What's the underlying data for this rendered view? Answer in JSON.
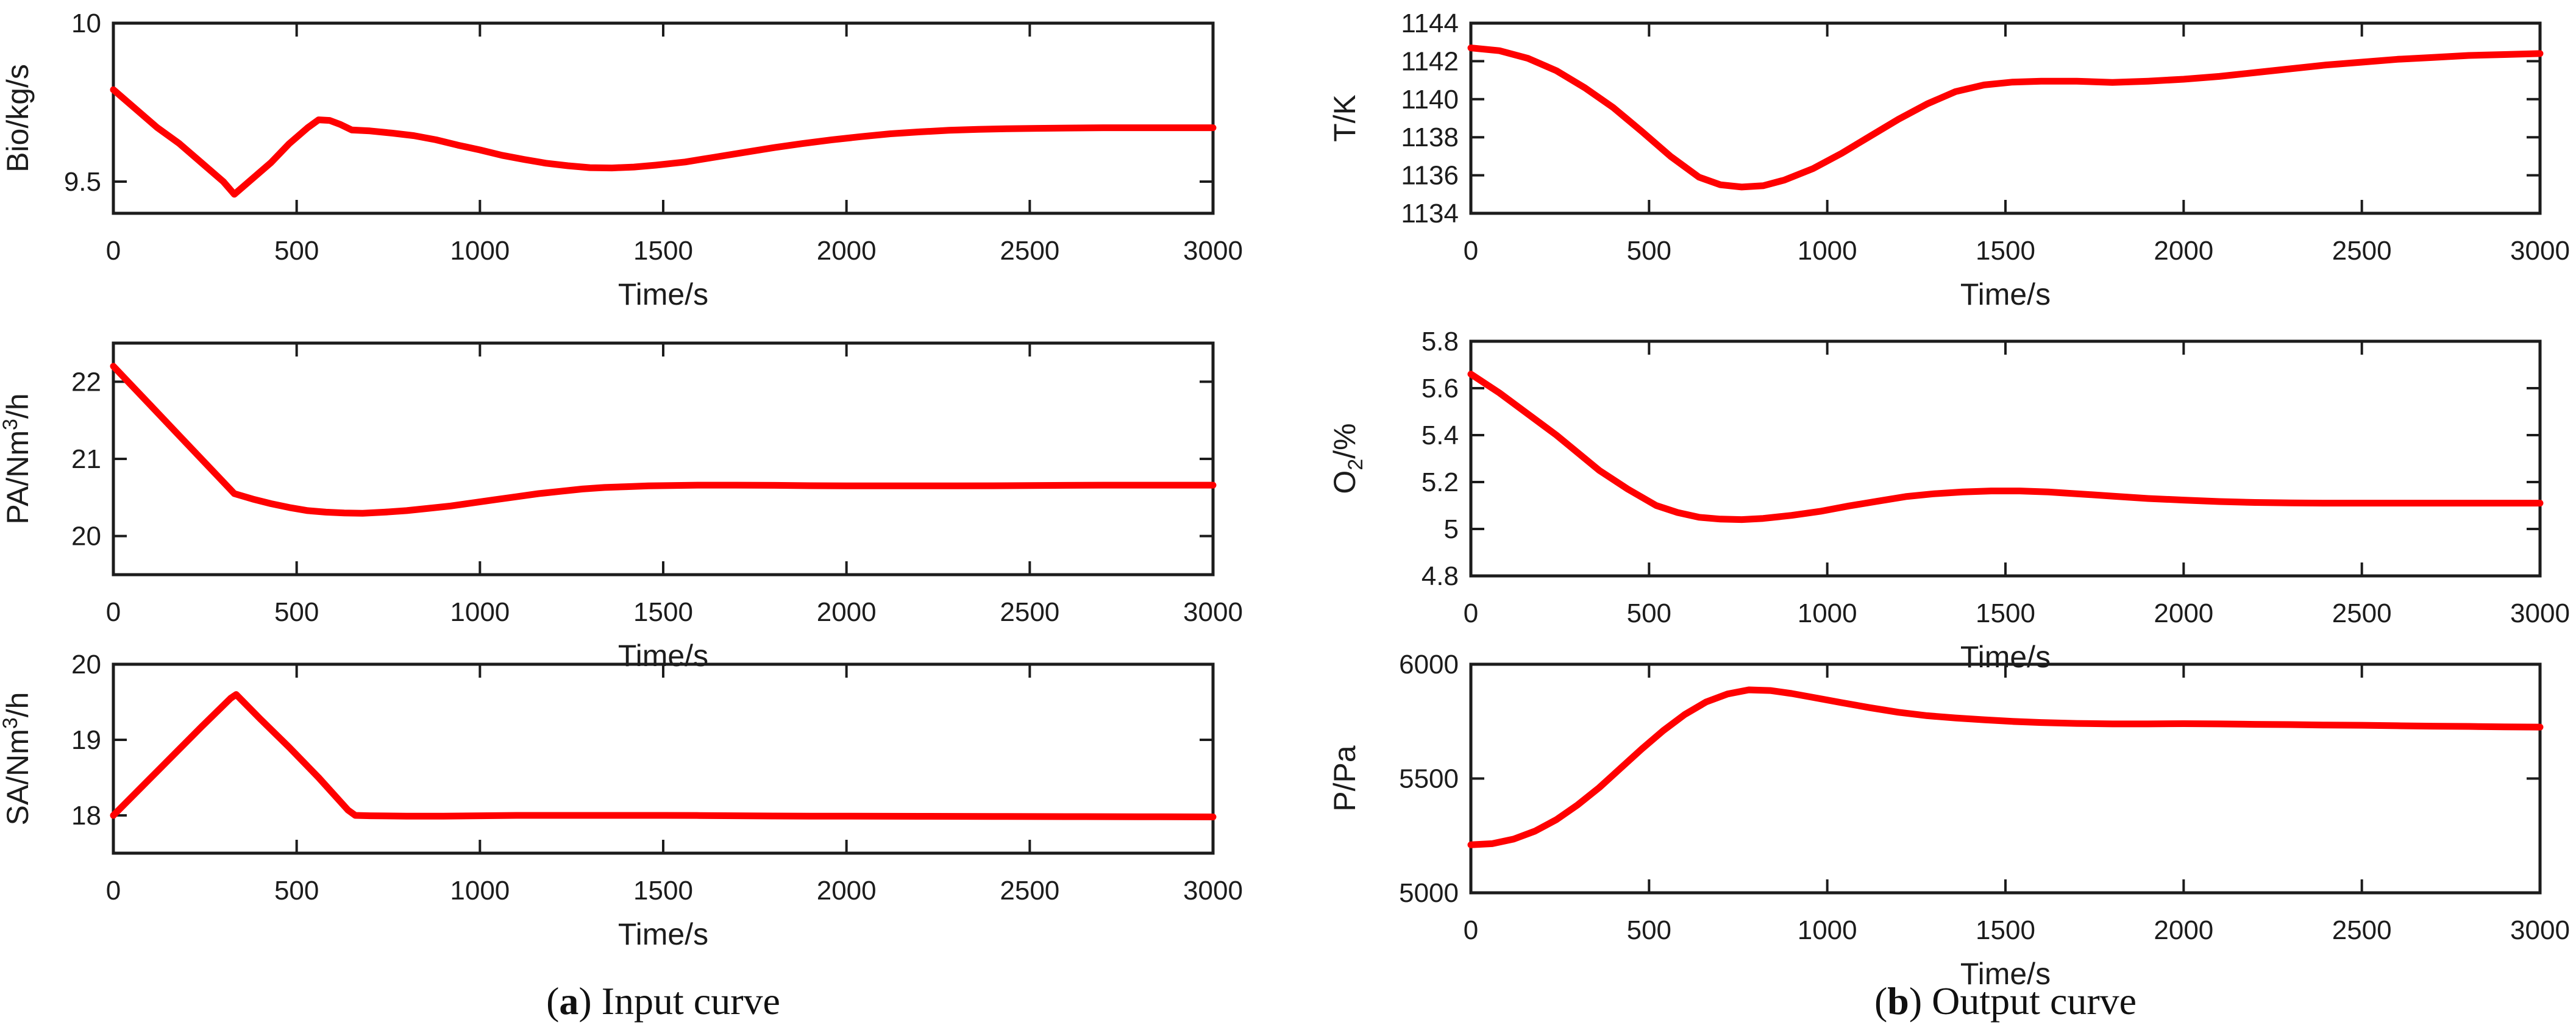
{
  "figure": {
    "caption_a": {
      "pre": "(",
      "letter": "a",
      "post": ") Input curve"
    },
    "caption_b": {
      "pre": "(",
      "letter": "b",
      "post": ") Output curve"
    }
  },
  "style": {
    "line_color": "#ff0000",
    "axis_color": "#1c1c1c",
    "text_color": "#1c1c1c"
  },
  "chart_data": [
    {
      "id": "bio",
      "type": "line",
      "name": "biomass-feed-input",
      "ylabel": "Bio/kg/s",
      "ylabel_parts": [
        {
          "text": "Bio/kg/s"
        }
      ],
      "xlabel": "Time/s",
      "xlim": [
        0,
        3000
      ],
      "ylim": [
        9.4,
        10
      ],
      "xticks": [
        0,
        500,
        1000,
        1500,
        2000,
        2500,
        3000
      ],
      "xtick_labels": [
        "0",
        "500",
        "1000",
        "1500",
        "2000",
        "2500",
        "3000"
      ],
      "yticks": [
        9.5,
        10
      ],
      "ytick_labels": [
        "9.5",
        "10"
      ],
      "grid": false,
      "legend": null,
      "points": [
        [
          0,
          9.79
        ],
        [
          60,
          9.73
        ],
        [
          120,
          9.67
        ],
        [
          180,
          9.62
        ],
        [
          240,
          9.56
        ],
        [
          300,
          9.5
        ],
        [
          330,
          9.46
        ],
        [
          380,
          9.51
        ],
        [
          430,
          9.56
        ],
        [
          480,
          9.62
        ],
        [
          530,
          9.67
        ],
        [
          560,
          9.695
        ],
        [
          590,
          9.693
        ],
        [
          620,
          9.68
        ],
        [
          650,
          9.663
        ],
        [
          700,
          9.66
        ],
        [
          760,
          9.653
        ],
        [
          820,
          9.645
        ],
        [
          880,
          9.632
        ],
        [
          940,
          9.615
        ],
        [
          1000,
          9.6
        ],
        [
          1060,
          9.583
        ],
        [
          1120,
          9.57
        ],
        [
          1180,
          9.558
        ],
        [
          1240,
          9.55
        ],
        [
          1300,
          9.544
        ],
        [
          1360,
          9.543
        ],
        [
          1420,
          9.546
        ],
        [
          1480,
          9.552
        ],
        [
          1560,
          9.562
        ],
        [
          1640,
          9.577
        ],
        [
          1720,
          9.592
        ],
        [
          1800,
          9.607
        ],
        [
          1880,
          9.62
        ],
        [
          1960,
          9.632
        ],
        [
          2040,
          9.642
        ],
        [
          2120,
          9.651
        ],
        [
          2200,
          9.657
        ],
        [
          2280,
          9.662
        ],
        [
          2360,
          9.665
        ],
        [
          2440,
          9.667
        ],
        [
          2520,
          9.668
        ],
        [
          2600,
          9.669
        ],
        [
          2700,
          9.67
        ],
        [
          2800,
          9.67
        ],
        [
          2900,
          9.67
        ],
        [
          3000,
          9.67
        ]
      ]
    },
    {
      "id": "pa",
      "type": "line",
      "name": "primary-air-input",
      "ylabel": "PA/Nm3/h",
      "ylabel_parts": [
        {
          "text": "PA/Nm"
        },
        {
          "text": "3",
          "style": "sup"
        },
        {
          "text": "/h"
        }
      ],
      "xlabel": "Time/s",
      "xlim": [
        0,
        3000
      ],
      "ylim": [
        19.5,
        22.5
      ],
      "xticks": [
        0,
        500,
        1000,
        1500,
        2000,
        2500,
        3000
      ],
      "xtick_labels": [
        "0",
        "500",
        "1000",
        "1500",
        "2000",
        "2500",
        "3000"
      ],
      "yticks": [
        20,
        21,
        22
      ],
      "ytick_labels": [
        "20",
        "21",
        "22"
      ],
      "grid": false,
      "legend": null,
      "points": [
        [
          0,
          22.2
        ],
        [
          60,
          21.9
        ],
        [
          120,
          21.6
        ],
        [
          180,
          21.3
        ],
        [
          240,
          21.0
        ],
        [
          300,
          20.7
        ],
        [
          330,
          20.55
        ],
        [
          380,
          20.48
        ],
        [
          430,
          20.42
        ],
        [
          480,
          20.37
        ],
        [
          530,
          20.33
        ],
        [
          580,
          20.31
        ],
        [
          630,
          20.3
        ],
        [
          680,
          20.295
        ],
        [
          740,
          20.31
        ],
        [
          800,
          20.33
        ],
        [
          860,
          20.36
        ],
        [
          920,
          20.39
        ],
        [
          980,
          20.43
        ],
        [
          1040,
          20.47
        ],
        [
          1100,
          20.51
        ],
        [
          1160,
          20.55
        ],
        [
          1220,
          20.58
        ],
        [
          1280,
          20.61
        ],
        [
          1340,
          20.63
        ],
        [
          1400,
          20.64
        ],
        [
          1460,
          20.65
        ],
        [
          1520,
          20.655
        ],
        [
          1600,
          20.66
        ],
        [
          1700,
          20.66
        ],
        [
          1800,
          20.657
        ],
        [
          1900,
          20.653
        ],
        [
          2000,
          20.65
        ],
        [
          2100,
          20.65
        ],
        [
          2200,
          20.65
        ],
        [
          2300,
          20.65
        ],
        [
          2400,
          20.652
        ],
        [
          2500,
          20.655
        ],
        [
          2600,
          20.657
        ],
        [
          2700,
          20.66
        ],
        [
          2800,
          20.66
        ],
        [
          2900,
          20.66
        ],
        [
          3000,
          20.66
        ]
      ]
    },
    {
      "id": "sa",
      "type": "line",
      "name": "secondary-air-input",
      "ylabel": "SA/Nm3/h",
      "ylabel_parts": [
        {
          "text": "SA/Nm"
        },
        {
          "text": "3",
          "style": "sup"
        },
        {
          "text": "/h"
        }
      ],
      "xlabel": "Time/s",
      "xlim": [
        0,
        3000
      ],
      "ylim": [
        17.5,
        20
      ],
      "xticks": [
        0,
        500,
        1000,
        1500,
        2000,
        2500,
        3000
      ],
      "xtick_labels": [
        "0",
        "500",
        "1000",
        "1500",
        "2000",
        "2500",
        "3000"
      ],
      "yticks": [
        18,
        19,
        20
      ],
      "ytick_labels": [
        "18",
        "19",
        "20"
      ],
      "grid": false,
      "legend": null,
      "points": [
        [
          0,
          18.0
        ],
        [
          80,
          18.39
        ],
        [
          160,
          18.78
        ],
        [
          240,
          19.17
        ],
        [
          320,
          19.55
        ],
        [
          335,
          19.6
        ],
        [
          400,
          19.28
        ],
        [
          480,
          18.9
        ],
        [
          560,
          18.5
        ],
        [
          640,
          18.07
        ],
        [
          660,
          18.0
        ],
        [
          700,
          17.995
        ],
        [
          800,
          17.99
        ],
        [
          900,
          17.99
        ],
        [
          1000,
          17.995
        ],
        [
          1100,
          18.0
        ],
        [
          1200,
          18.0
        ],
        [
          1300,
          18.0
        ],
        [
          1400,
          18.0
        ],
        [
          1500,
          18.0
        ],
        [
          1600,
          17.998
        ],
        [
          1700,
          17.995
        ],
        [
          1800,
          17.992
        ],
        [
          1900,
          17.99
        ],
        [
          2000,
          17.99
        ],
        [
          2200,
          17.988
        ],
        [
          2400,
          17.986
        ],
        [
          2600,
          17.984
        ],
        [
          2800,
          17.982
        ],
        [
          3000,
          17.98
        ]
      ]
    },
    {
      "id": "t",
      "type": "line",
      "name": "temperature-output",
      "ylabel": "T/K",
      "ylabel_parts": [
        {
          "text": "T/K"
        }
      ],
      "xlabel": "Time/s",
      "xlim": [
        0,
        3000
      ],
      "ylim": [
        1134,
        1144
      ],
      "xticks": [
        0,
        500,
        1000,
        1500,
        2000,
        2500,
        3000
      ],
      "xtick_labels": [
        "0",
        "500",
        "1000",
        "1500",
        "2000",
        "2500",
        "3000"
      ],
      "yticks": [
        1134,
        1136,
        1138,
        1140,
        1142,
        1144
      ],
      "ytick_labels": [
        "1134",
        "1136",
        "1138",
        "1140",
        "1142",
        "1144"
      ],
      "grid": false,
      "legend": null,
      "points": [
        [
          0,
          1142.7
        ],
        [
          80,
          1142.55
        ],
        [
          160,
          1142.15
        ],
        [
          240,
          1141.5
        ],
        [
          320,
          1140.6
        ],
        [
          400,
          1139.55
        ],
        [
          480,
          1138.3
        ],
        [
          560,
          1137.0
        ],
        [
          640,
          1135.9
        ],
        [
          700,
          1135.5
        ],
        [
          760,
          1135.38
        ],
        [
          820,
          1135.45
        ],
        [
          880,
          1135.75
        ],
        [
          960,
          1136.35
        ],
        [
          1040,
          1137.15
        ],
        [
          1120,
          1138.05
        ],
        [
          1200,
          1138.95
        ],
        [
          1280,
          1139.75
        ],
        [
          1360,
          1140.4
        ],
        [
          1440,
          1140.75
        ],
        [
          1520,
          1140.9
        ],
        [
          1600,
          1140.95
        ],
        [
          1700,
          1140.95
        ],
        [
          1800,
          1140.88
        ],
        [
          1900,
          1140.95
        ],
        [
          2000,
          1141.05
        ],
        [
          2100,
          1141.2
        ],
        [
          2200,
          1141.4
        ],
        [
          2300,
          1141.6
        ],
        [
          2400,
          1141.8
        ],
        [
          2500,
          1141.95
        ],
        [
          2600,
          1142.1
        ],
        [
          2700,
          1142.2
        ],
        [
          2800,
          1142.3
        ],
        [
          2900,
          1142.35
        ],
        [
          3000,
          1142.4
        ]
      ]
    },
    {
      "id": "o2",
      "type": "line",
      "name": "oxygen-output",
      "ylabel": "O2/%",
      "ylabel_parts": [
        {
          "text": "O"
        },
        {
          "text": "2",
          "style": "sub"
        },
        {
          "text": "/%"
        }
      ],
      "xlabel": "Time/s",
      "xlim": [
        0,
        3000
      ],
      "ylim": [
        4.8,
        5.8
      ],
      "xticks": [
        0,
        500,
        1000,
        1500,
        2000,
        2500,
        3000
      ],
      "xtick_labels": [
        "0",
        "500",
        "1000",
        "1500",
        "2000",
        "2500",
        "3000"
      ],
      "yticks": [
        4.8,
        5.0,
        5.2,
        5.4,
        5.6,
        5.8
      ],
      "ytick_labels": [
        "4.8",
        "5",
        "5.2",
        "5.4",
        "5.6",
        "5.8"
      ],
      "grid": false,
      "legend": null,
      "points": [
        [
          0,
          5.66
        ],
        [
          80,
          5.58
        ],
        [
          160,
          5.49
        ],
        [
          240,
          5.4
        ],
        [
          320,
          5.3
        ],
        [
          360,
          5.25
        ],
        [
          440,
          5.17
        ],
        [
          520,
          5.1
        ],
        [
          580,
          5.07
        ],
        [
          640,
          5.05
        ],
        [
          700,
          5.042
        ],
        [
          760,
          5.04
        ],
        [
          820,
          5.045
        ],
        [
          900,
          5.058
        ],
        [
          980,
          5.075
        ],
        [
          1060,
          5.098
        ],
        [
          1140,
          5.118
        ],
        [
          1220,
          5.138
        ],
        [
          1300,
          5.15
        ],
        [
          1380,
          5.158
        ],
        [
          1460,
          5.162
        ],
        [
          1540,
          5.162
        ],
        [
          1620,
          5.158
        ],
        [
          1700,
          5.15
        ],
        [
          1800,
          5.14
        ],
        [
          1900,
          5.13
        ],
        [
          2000,
          5.123
        ],
        [
          2100,
          5.117
        ],
        [
          2200,
          5.113
        ],
        [
          2300,
          5.111
        ],
        [
          2400,
          5.11
        ],
        [
          2500,
          5.11
        ],
        [
          2600,
          5.11
        ],
        [
          2700,
          5.11
        ],
        [
          2800,
          5.11
        ],
        [
          2900,
          5.11
        ],
        [
          3000,
          5.11
        ]
      ]
    },
    {
      "id": "p",
      "type": "line",
      "name": "pressure-output",
      "ylabel": "P/Pa",
      "ylabel_parts": [
        {
          "text": "P/Pa"
        }
      ],
      "xlabel": "Time/s",
      "xlim": [
        0,
        3000
      ],
      "ylim": [
        5000,
        6000
      ],
      "xticks": [
        0,
        500,
        1000,
        1500,
        2000,
        2500,
        3000
      ],
      "xtick_labels": [
        "0",
        "500",
        "1000",
        "1500",
        "2000",
        "2500",
        "3000"
      ],
      "yticks": [
        5000,
        5500,
        6000
      ],
      "ytick_labels": [
        "5000",
        "5500",
        "6000"
      ],
      "grid": false,
      "legend": null,
      "points": [
        [
          0,
          5210
        ],
        [
          60,
          5215
        ],
        [
          120,
          5235
        ],
        [
          180,
          5270
        ],
        [
          240,
          5320
        ],
        [
          300,
          5385
        ],
        [
          360,
          5460
        ],
        [
          420,
          5545
        ],
        [
          480,
          5630
        ],
        [
          540,
          5710
        ],
        [
          600,
          5780
        ],
        [
          660,
          5835
        ],
        [
          720,
          5870
        ],
        [
          780,
          5888
        ],
        [
          840,
          5885
        ],
        [
          900,
          5872
        ],
        [
          960,
          5855
        ],
        [
          1040,
          5832
        ],
        [
          1120,
          5810
        ],
        [
          1200,
          5790
        ],
        [
          1280,
          5775
        ],
        [
          1360,
          5765
        ],
        [
          1440,
          5757
        ],
        [
          1520,
          5750
        ],
        [
          1600,
          5745
        ],
        [
          1700,
          5741
        ],
        [
          1800,
          5739
        ],
        [
          1900,
          5739
        ],
        [
          2000,
          5740
        ],
        [
          2100,
          5739
        ],
        [
          2200,
          5737
        ],
        [
          2300,
          5736
        ],
        [
          2400,
          5734
        ],
        [
          2500,
          5733
        ],
        [
          2600,
          5731
        ],
        [
          2700,
          5729
        ],
        [
          2800,
          5728
        ],
        [
          2900,
          5726
        ],
        [
          3000,
          5725
        ]
      ]
    }
  ]
}
